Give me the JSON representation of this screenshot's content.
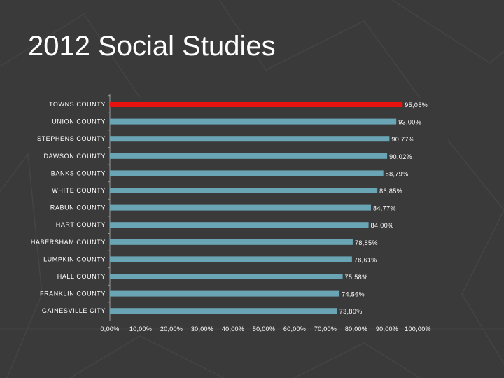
{
  "slide": {
    "title": "2012 Social Studies"
  },
  "colors": {
    "background": "#3a3a3a",
    "bar": "#6aa5b5",
    "highlight_bar": "#e8130f",
    "axis": "#9a9a9a",
    "text": "#ffffff"
  },
  "chart_data": {
    "type": "bar",
    "orientation": "horizontal",
    "categories": [
      "TOWNS COUNTY",
      "UNION COUNTY",
      "STEPHENS COUNTY",
      "DAWSON COUNTY",
      "BANKS COUNTY",
      "WHITE COUNTY",
      "RABUN COUNTY",
      "HART COUNTY",
      "HABERSHAM COUNTY",
      "LUMPKIN COUNTY",
      "HALL COUNTY",
      "FRANKLIN COUNTY",
      "GAINESVILLE CITY"
    ],
    "values": [
      95.05,
      93.0,
      90.77,
      90.02,
      88.79,
      86.85,
      84.77,
      84.0,
      78.85,
      78.61,
      75.58,
      74.56,
      73.8
    ],
    "value_labels": [
      "95,05%",
      "93,00%",
      "90,77%",
      "90,02%",
      "88,79%",
      "86,85%",
      "84,77%",
      "84,00%",
      "78,85%",
      "78,61%",
      "75,58%",
      "74,56%",
      "73,80%"
    ],
    "highlight_index": 0,
    "xlim": [
      0,
      100
    ],
    "x_ticks": [
      0,
      10,
      20,
      30,
      40,
      50,
      60,
      70,
      80,
      90,
      100
    ],
    "x_tick_labels": [
      "0,00%",
      "10,00%",
      "20,00%",
      "30,00%",
      "40,00%",
      "50,00%",
      "60,00%",
      "70,00%",
      "80,00%",
      "90,00%",
      "100,00%"
    ],
    "grid": false,
    "legend": "none"
  }
}
